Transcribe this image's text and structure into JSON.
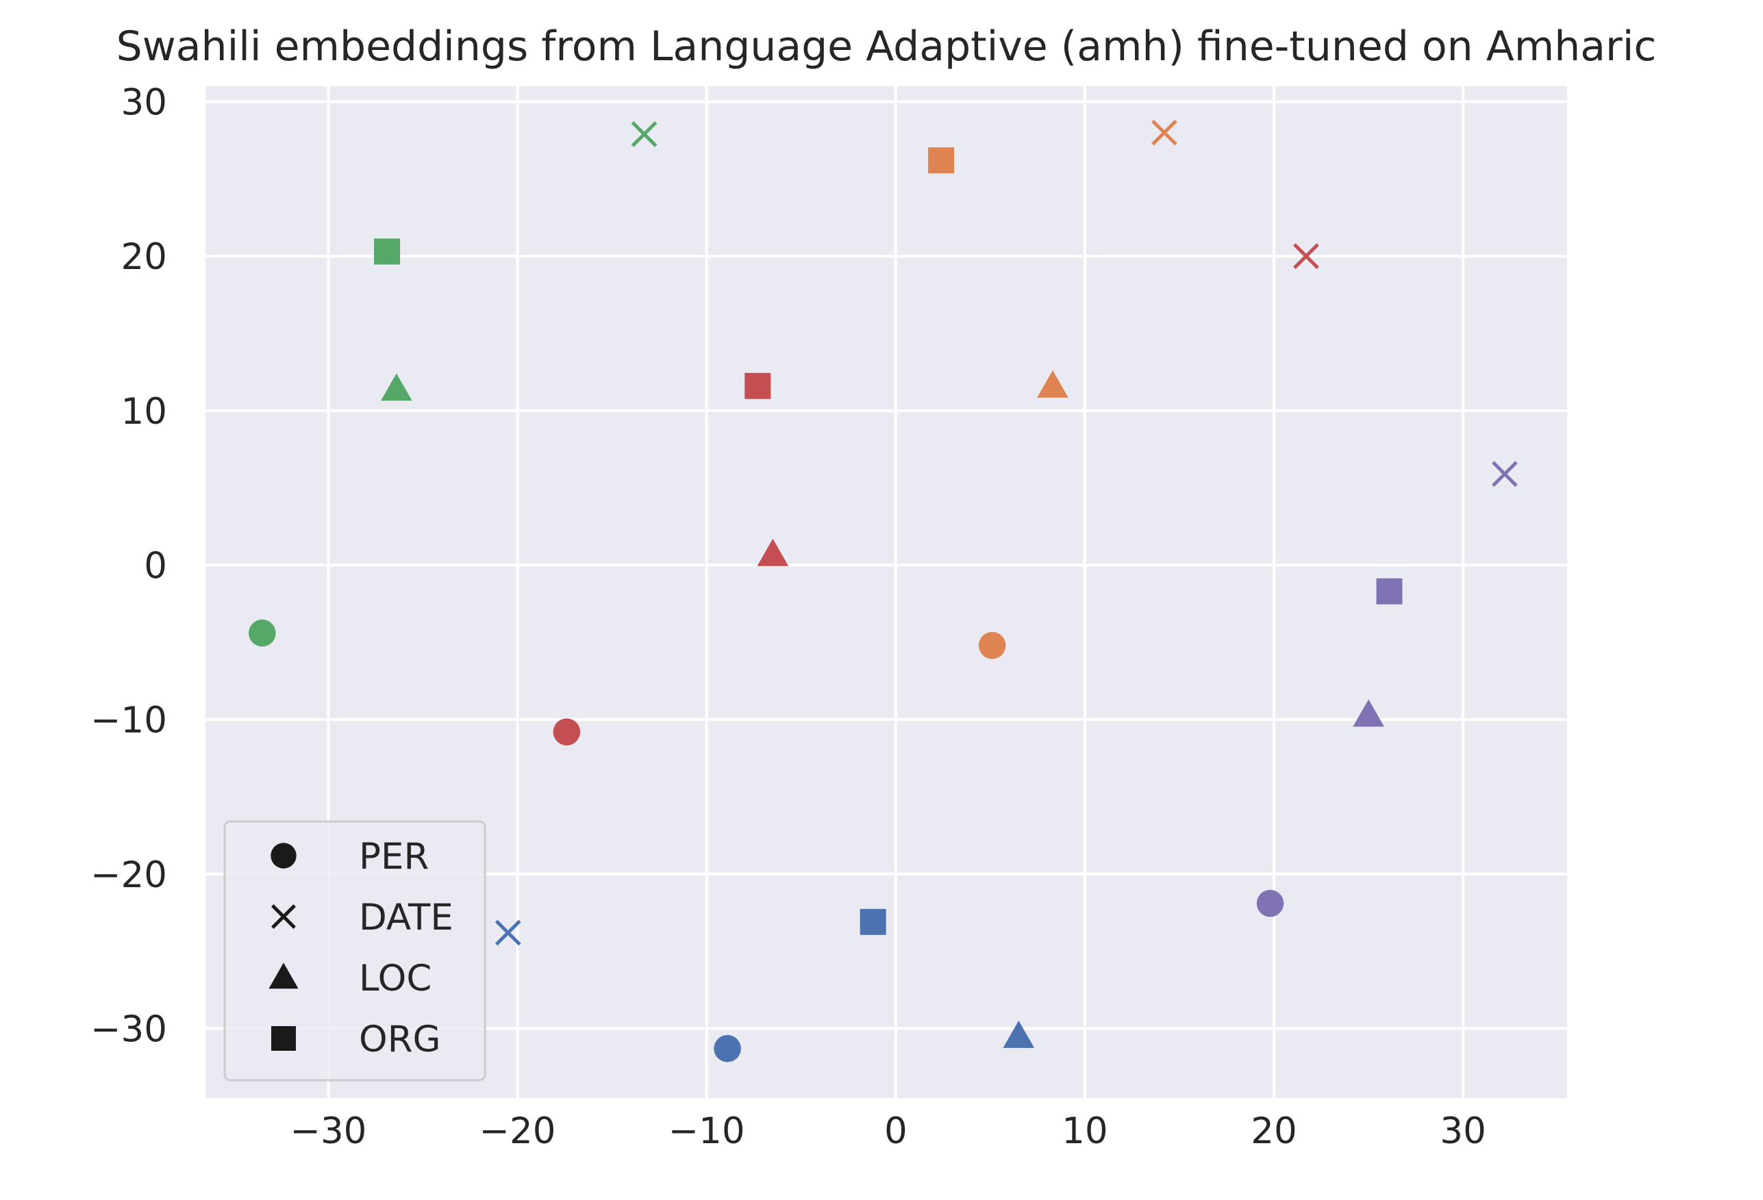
{
  "chart_data": {
    "type": "scatter",
    "title": "Swahili embeddings from Language Adaptive (amh) fine-tuned on Amharic",
    "xlabel": "",
    "ylabel": "",
    "xlim": [
      -36.5,
      35.5
    ],
    "ylim": [
      -34.5,
      31
    ],
    "xticks": [
      -30,
      -20,
      -10,
      0,
      10,
      20,
      30
    ],
    "yticks": [
      -30,
      -20,
      -10,
      0,
      10,
      20,
      30
    ],
    "xtick_labels": [
      "−30",
      "−20",
      "−10",
      "0",
      "10",
      "20",
      "30"
    ],
    "ytick_labels": [
      "−30",
      "−20",
      "−10",
      "0",
      "10",
      "20",
      "30"
    ],
    "grid": true,
    "background": "#eaeaf2",
    "gridColor": "#ffffff",
    "legend": {
      "placement": "lower-left",
      "entries": [
        {
          "label": "PER",
          "marker": "circle"
        },
        {
          "label": "DATE",
          "marker": "x"
        },
        {
          "label": "LOC",
          "marker": "triangle"
        },
        {
          "label": "ORG",
          "marker": "square"
        }
      ]
    },
    "points": [
      {
        "x": -33.5,
        "y": -4.4,
        "marker": "circle",
        "color": "#55a868"
      },
      {
        "x": -13.3,
        "y": 27.9,
        "marker": "x",
        "color": "#55a868"
      },
      {
        "x": -26.4,
        "y": 11.4,
        "marker": "triangle",
        "color": "#55a868"
      },
      {
        "x": -26.9,
        "y": 20.3,
        "marker": "square",
        "color": "#55a868"
      },
      {
        "x": 5.1,
        "y": -5.2,
        "marker": "circle",
        "color": "#dd8452"
      },
      {
        "x": 14.2,
        "y": 28.0,
        "marker": "x",
        "color": "#dd8452"
      },
      {
        "x": 8.3,
        "y": 11.6,
        "marker": "triangle",
        "color": "#dd8452"
      },
      {
        "x": 2.4,
        "y": 26.2,
        "marker": "square",
        "color": "#dd8452"
      },
      {
        "x": -17.4,
        "y": -10.8,
        "marker": "circle",
        "color": "#c44e52"
      },
      {
        "x": 21.7,
        "y": 20.0,
        "marker": "x",
        "color": "#c44e52"
      },
      {
        "x": -6.5,
        "y": 0.7,
        "marker": "triangle",
        "color": "#c44e52"
      },
      {
        "x": -7.3,
        "y": 11.6,
        "marker": "square",
        "color": "#c44e52"
      },
      {
        "x": -8.9,
        "y": -31.3,
        "marker": "circle",
        "color": "#4c72b0"
      },
      {
        "x": -20.5,
        "y": -23.8,
        "marker": "x",
        "color": "#4c72b0"
      },
      {
        "x": 6.5,
        "y": -30.5,
        "marker": "triangle",
        "color": "#4c72b0"
      },
      {
        "x": -1.2,
        "y": -23.1,
        "marker": "square",
        "color": "#4c72b0"
      },
      {
        "x": 19.8,
        "y": -21.9,
        "marker": "circle",
        "color": "#8172b3"
      },
      {
        "x": 32.2,
        "y": 5.9,
        "marker": "x",
        "color": "#8172b3"
      },
      {
        "x": 25.0,
        "y": -9.7,
        "marker": "triangle",
        "color": "#8172b3"
      },
      {
        "x": 26.1,
        "y": -1.7,
        "marker": "square",
        "color": "#8172b3"
      }
    ]
  }
}
